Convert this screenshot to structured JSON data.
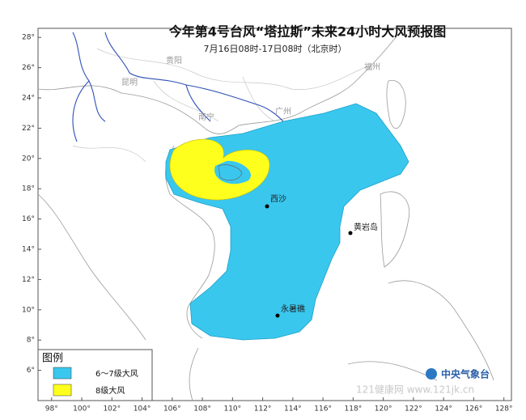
{
  "map": {
    "title": "今年第4号台风“塔拉斯”未来24小时大风预报图",
    "subtitle": "7月16日08时-17日08时（北京时）",
    "xlim": [
      97.1,
      128.5
    ],
    "ylim": [
      4,
      28.6
    ],
    "xticks": [
      {
        "value": 98,
        "label": "98°"
      },
      {
        "value": 100,
        "label": "100°"
      },
      {
        "value": 102,
        "label": "102°"
      },
      {
        "value": 104,
        "label": "104°"
      },
      {
        "value": 106,
        "label": "106°"
      },
      {
        "value": 108,
        "label": "108°"
      },
      {
        "value": 110,
        "label": "110°"
      },
      {
        "value": 112,
        "label": "112°"
      },
      {
        "value": 114,
        "label": "114°"
      },
      {
        "value": 116,
        "label": "116°"
      },
      {
        "value": 118,
        "label": "118°"
      },
      {
        "value": 120,
        "label": "120°"
      },
      {
        "value": 122,
        "label": "122°"
      },
      {
        "value": 124,
        "label": "124°"
      },
      {
        "value": 126,
        "label": "126°"
      },
      {
        "value": 128,
        "label": "128°"
      }
    ],
    "yticks": [
      {
        "value": 6,
        "label": "6°"
      },
      {
        "value": 8,
        "label": "8°"
      },
      {
        "value": 10,
        "label": "10°"
      },
      {
        "value": 12,
        "label": "12°"
      },
      {
        "value": 14,
        "label": "14°"
      },
      {
        "value": 16,
        "label": "16°"
      },
      {
        "value": 18,
        "label": "18°"
      },
      {
        "value": 20,
        "label": "20°"
      },
      {
        "value": 22,
        "label": "22°"
      },
      {
        "value": 24,
        "label": "24°"
      },
      {
        "value": 26,
        "label": "26°"
      },
      {
        "value": 28,
        "label": "28°"
      }
    ],
    "places": [
      "昆明",
      "贵阳",
      "南宁",
      "广州",
      "福州",
      "西沙",
      "黄岩岛",
      "永暑礁"
    ],
    "legend": {
      "title": "图例",
      "items": [
        "6～7级大风",
        "8级大风"
      ]
    },
    "logo": "中央气象台",
    "watermark": "121健康网 www.121jk.cn"
  }
}
